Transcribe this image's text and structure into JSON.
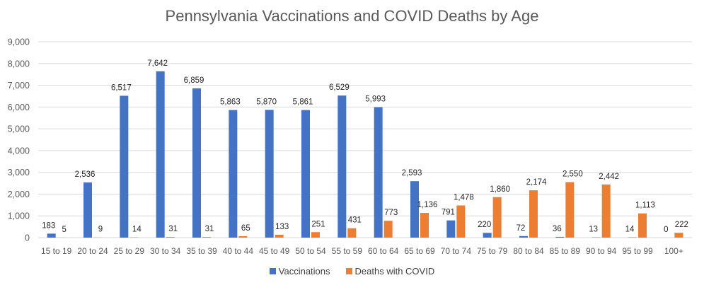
{
  "chart_data": {
    "type": "bar",
    "title": "Pennsylvania Vaccinations and COVID Deaths by Age",
    "xlabel": "",
    "ylabel": "",
    "ylim": [
      0,
      9000
    ],
    "yticks": [
      0,
      1000,
      2000,
      3000,
      4000,
      5000,
      6000,
      7000,
      8000,
      9000
    ],
    "ytick_labels": [
      "0",
      "1,000",
      "2,000",
      "3,000",
      "4,000",
      "5,000",
      "6,000",
      "7,000",
      "8,000",
      "9,000"
    ],
    "grid": true,
    "legend_position": "bottom",
    "categories": [
      "15 to 19",
      "20 to 24",
      "25 to 29",
      "30 to 34",
      "35 to 39",
      "40 to 44",
      "45 to 49",
      "50 to 54",
      "55 to 59",
      "60 to 64",
      "65 to 69",
      "70 to 74",
      "75 to 79",
      "80 to 84",
      "85 to 89",
      "90 to 94",
      "95 to 99",
      "100+"
    ],
    "series": [
      {
        "name": "Vaccinations",
        "color": "#4472C4",
        "values": [
          183,
          2536,
          6517,
          7642,
          6859,
          5863,
          5870,
          5861,
          6529,
          5993,
          2593,
          791,
          220,
          72,
          36,
          13,
          14,
          0
        ],
        "labels": [
          "183",
          "2,536",
          "6,517",
          "7,642",
          "6,859",
          "5,863",
          "5,870",
          "5,861",
          "6,529",
          "5,993",
          "2,593",
          "791",
          "220",
          "72",
          "36",
          "13",
          "14",
          "0"
        ]
      },
      {
        "name": "Deaths with COVID",
        "color": "#ED7D31",
        "values": [
          5,
          9,
          14,
          31,
          31,
          65,
          133,
          251,
          431,
          773,
          1136,
          1478,
          1860,
          2174,
          2550,
          2442,
          1113,
          222
        ],
        "labels": [
          "5",
          "9",
          "14",
          "31",
          "31",
          "65",
          "133",
          "251",
          "431",
          "773",
          "1,136",
          "1,478",
          "1,860",
          "2,174",
          "2,550",
          "2,442",
          "1,113",
          "222"
        ]
      }
    ]
  }
}
